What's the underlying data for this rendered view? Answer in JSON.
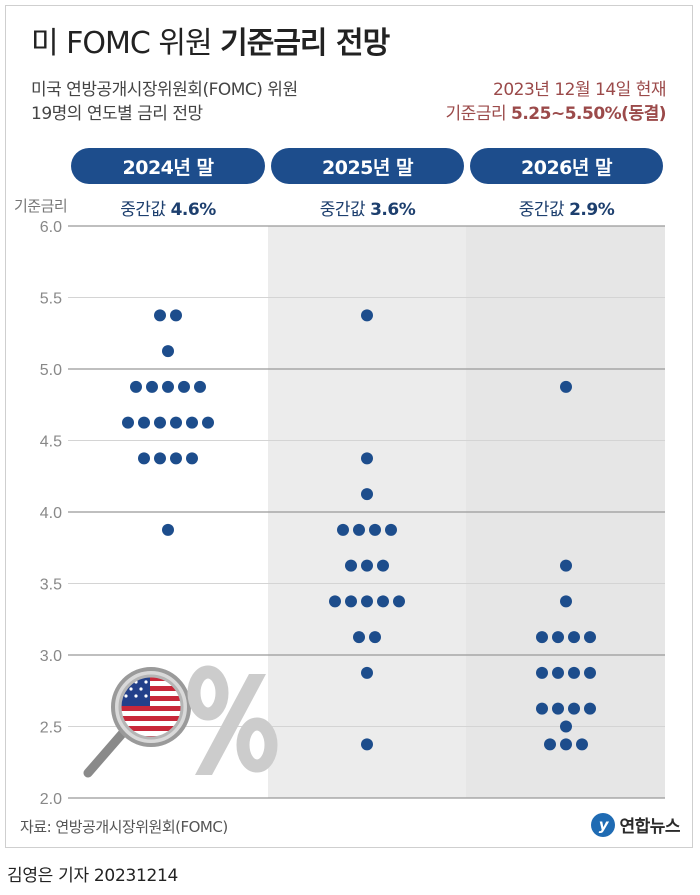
{
  "header": {
    "title_light": "미 FOMC 위원",
    "title_bold": "기준금리 전망",
    "subtitle_line1": "미국 연방공개시장위원회(FOMC) 위원",
    "subtitle_line2": "19명의 연도별 금리 전망",
    "status_line1": "2023년 12월 14일 현재",
    "status_prefix": "기준금리",
    "status_value": "5.25~5.50%(동결)"
  },
  "columns": [
    {
      "label": "2024년 말",
      "median_prefix": "중간값",
      "median_value": "4.6%"
    },
    {
      "label": "2025년 말",
      "median_prefix": "중간값",
      "median_value": "3.6%"
    },
    {
      "label": "2026년 말",
      "median_prefix": "중간값",
      "median_value": "2.9%"
    }
  ],
  "footer": {
    "source": "자료: 연방공개시장위원회(FOMC)",
    "logo_text": "연합뉴스",
    "byline": "김영은 기자  20231214"
  },
  "colors": {
    "dot": "#1d4d8c",
    "pill": "#1d4d8c",
    "band": "#ececec",
    "grid_dark": "#999999",
    "grid_light": "#ffffff"
  },
  "chart_data": {
    "type": "scatter",
    "ylabel": "기준금리",
    "ylim": [
      2.0,
      6.0
    ],
    "yticks": [
      "2.0",
      "2.5",
      "3.0",
      "3.5",
      "4.0",
      "4.5",
      "5.0",
      "5.5",
      "6.0"
    ],
    "categories": [
      "2024년 말",
      "2025년 말",
      "2026년 말"
    ],
    "series": [
      {
        "values": [
          {
            "y": 5.375,
            "n": 2
          },
          {
            "y": 5.125,
            "n": 1
          },
          {
            "y": 4.875,
            "n": 5
          },
          {
            "y": 4.625,
            "n": 6
          },
          {
            "y": 4.375,
            "n": 4
          },
          {
            "y": 3.875,
            "n": 1
          }
        ]
      },
      {
        "values": [
          {
            "y": 5.375,
            "n": 1
          },
          {
            "y": 4.375,
            "n": 1
          },
          {
            "y": 4.125,
            "n": 1
          },
          {
            "y": 3.875,
            "n": 4
          },
          {
            "y": 3.625,
            "n": 3
          },
          {
            "y": 3.375,
            "n": 5
          },
          {
            "y": 3.125,
            "n": 2
          },
          {
            "y": 2.875,
            "n": 1
          },
          {
            "y": 2.375,
            "n": 1
          }
        ]
      },
      {
        "values": [
          {
            "y": 4.875,
            "n": 1
          },
          {
            "y": 3.625,
            "n": 1
          },
          {
            "y": 3.375,
            "n": 1
          },
          {
            "y": 3.125,
            "n": 4
          },
          {
            "y": 2.875,
            "n": 4
          },
          {
            "y": 2.625,
            "n": 4
          },
          {
            "y": 2.5,
            "n": 1
          },
          {
            "y": 2.375,
            "n": 3
          }
        ]
      }
    ]
  }
}
